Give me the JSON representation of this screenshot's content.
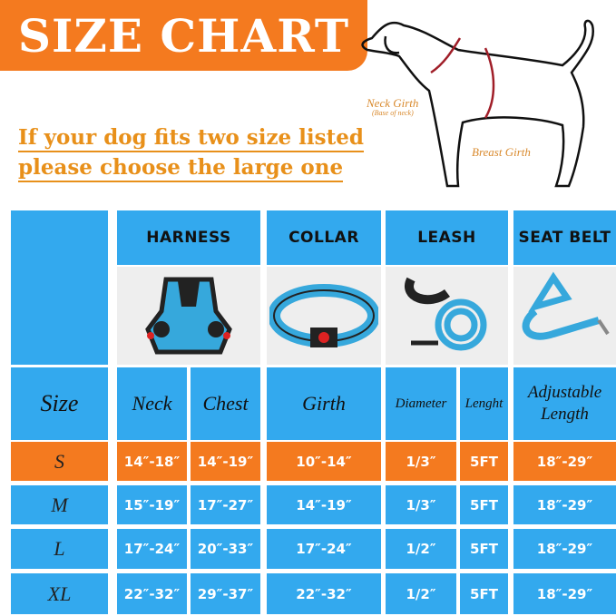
{
  "title": "SIZE CHART",
  "tip": [
    "If your dog fits two size listed",
    "please choose the large one"
  ],
  "diagram": {
    "neck": "Neck Girth",
    "neck_sub": "(Base of neck)",
    "breast": "Breast Girth"
  },
  "products": [
    "HARNESS",
    "COLLAR",
    "LEASH",
    "SEAT BELT"
  ],
  "subheaders": {
    "size": "Size",
    "neck": "Neck",
    "chest": "Chest",
    "girth": "Girth",
    "diameter": "Diameter",
    "length": "Lenght",
    "adjustable": "Adjustable Length"
  },
  "rows": [
    {
      "size": "S",
      "neck": "14″-18″",
      "chest": "14″-19″",
      "girth": "10″-14″",
      "diameter": "1/3″",
      "length": "5FT",
      "belt": "18″-29″"
    },
    {
      "size": "M",
      "neck": "15″-19″",
      "chest": "17″-27″",
      "girth": "14″-19″",
      "diameter": "1/3″",
      "length": "5FT",
      "belt": "18″-29″"
    },
    {
      "size": "L",
      "neck": "17″-24″",
      "chest": "20″-33″",
      "girth": "17″-24″",
      "diameter": "1/2″",
      "length": "5FT",
      "belt": "18″-29″"
    },
    {
      "size": "XL",
      "neck": "22″-32″",
      "chest": "29″-37″",
      "girth": "22″-32″",
      "diameter": "1/2″",
      "length": "5FT",
      "belt": "18″-29″"
    }
  ],
  "colors": {
    "blue": "#33a9ee",
    "orange": "#f47a1f",
    "highlight_row": "S"
  }
}
